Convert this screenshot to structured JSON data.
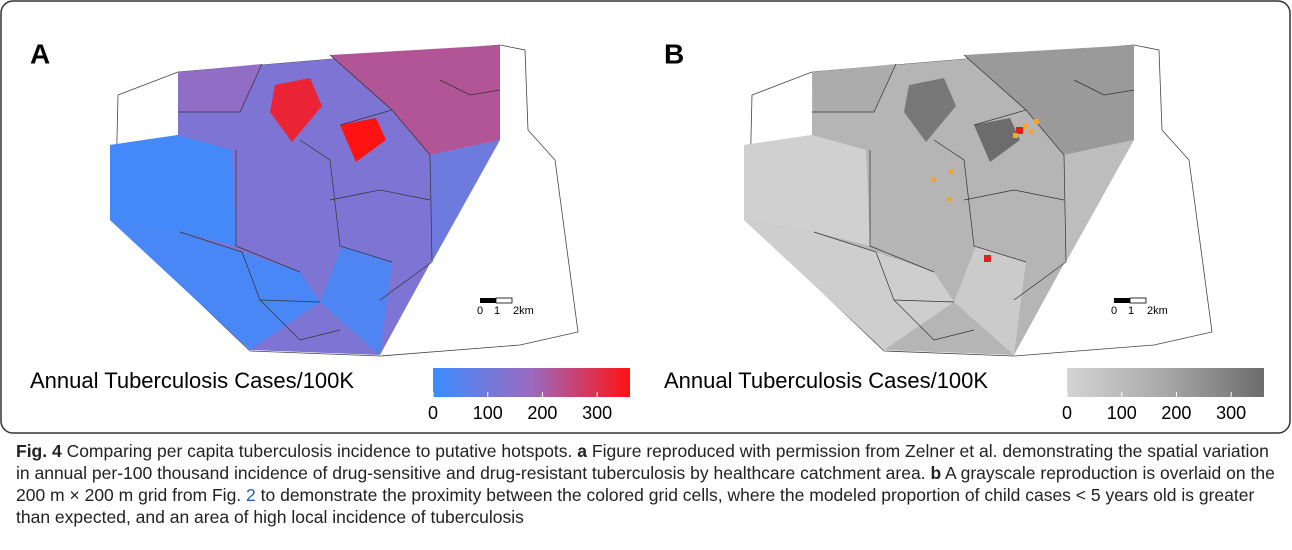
{
  "figure": {
    "panels": [
      {
        "label": "A",
        "legend": {
          "title": "Annual Tuberculosis Cases/100K",
          "range": [
            0,
            360
          ],
          "ticks": [
            0,
            100,
            200,
            300
          ],
          "colors": [
            "#3c8cff",
            "#9a6ac0",
            "#ff1212"
          ]
        },
        "scalebar": [
          "0",
          "1",
          "2km"
        ]
      },
      {
        "label": "B",
        "legend": {
          "title": "Annual Tuberculosis Cases/100K",
          "range": [
            0,
            360
          ],
          "ticks": [
            0,
            100,
            200,
            300
          ],
          "colors": [
            "#d4d4d4",
            "#a8a8a8",
            "#6c6c6c"
          ]
        },
        "scalebar": [
          "0",
          "1",
          "2km"
        ]
      }
    ]
  },
  "caption": {
    "fig": "Fig. 4",
    "text1": " Comparing per capita tuberculosis incidence to putative hotspots. ",
    "a": "a",
    "text2": " Figure reproduced with permission from Zelner et al. demonstrating the spatial variation in annual per-100 thousand incidence of drug-sensitive and drug-resistant tuberculosis by healthcare catchment area. ",
    "b": "b",
    "text3": " A grayscale reproduction is overlaid on the 200 m × 200 m grid from Fig. ",
    "ref": "2",
    "text4": " to demonstrate the proximity between the colored grid cells, where the modeled proportion of child cases < 5 years old is greater than expected, and an area of high local incidence of tuberculosis"
  }
}
